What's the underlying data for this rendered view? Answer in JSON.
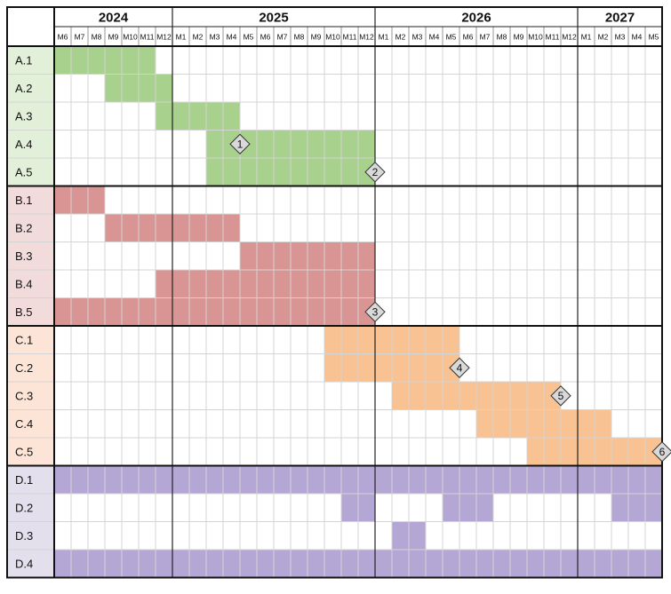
{
  "chart_data": {
    "type": "gantt",
    "years": [
      {
        "label": "2024",
        "start": 0,
        "months": 7
      },
      {
        "label": "2025",
        "start": 7,
        "months": 12
      },
      {
        "label": "2026",
        "start": 19,
        "months": 12
      },
      {
        "label": "2027",
        "start": 31,
        "months": 5
      }
    ],
    "months": [
      "M6",
      "M7",
      "M8",
      "M9",
      "M10",
      "M11",
      "M12",
      "M1",
      "M2",
      "M3",
      "M4",
      "M5",
      "M6",
      "M7",
      "M8",
      "M9",
      "M10",
      "M11",
      "M12",
      "M1",
      "M2",
      "M3",
      "M4",
      "M5",
      "M6",
      "M7",
      "M8",
      "M9",
      "M10",
      "M11",
      "M12",
      "M1",
      "M2",
      "M3",
      "M4",
      "M5"
    ],
    "colors": {
      "A": {
        "bar": "#a9d18e",
        "label_bg": "#e2efd9"
      },
      "B": {
        "bar": "#d99594",
        "label_bg": "#f2dcdb"
      },
      "C": {
        "bar": "#f8c293",
        "label_bg": "#fce4d6"
      },
      "D": {
        "bar": "#b4a7d6",
        "label_bg": "#e4dfec"
      }
    },
    "groups": [
      {
        "id": "A",
        "tasks": [
          {
            "label": "A.1",
            "spans": [
              [
                0,
                5
              ]
            ]
          },
          {
            "label": "A.2",
            "spans": [
              [
                3,
                6
              ]
            ]
          },
          {
            "label": "A.3",
            "spans": [
              [
                6,
                10
              ]
            ]
          },
          {
            "label": "A.4",
            "spans": [
              [
                9,
                18
              ]
            ]
          },
          {
            "label": "A.5",
            "spans": [
              [
                9,
                18
              ]
            ]
          }
        ]
      },
      {
        "id": "B",
        "tasks": [
          {
            "label": "B.1",
            "spans": [
              [
                0,
                2
              ]
            ]
          },
          {
            "label": "B.2",
            "spans": [
              [
                3,
                10
              ]
            ]
          },
          {
            "label": "B.3",
            "spans": [
              [
                11,
                18
              ]
            ]
          },
          {
            "label": "B.4",
            "spans": [
              [
                6,
                18
              ]
            ]
          },
          {
            "label": "B.5",
            "spans": [
              [
                0,
                18
              ]
            ]
          }
        ]
      },
      {
        "id": "C",
        "tasks": [
          {
            "label": "C.1",
            "spans": [
              [
                16,
                23
              ]
            ]
          },
          {
            "label": "C.2",
            "spans": [
              [
                16,
                23
              ]
            ]
          },
          {
            "label": "C.3",
            "spans": [
              [
                20,
                29
              ]
            ]
          },
          {
            "label": "C.4",
            "spans": [
              [
                25,
                32
              ]
            ]
          },
          {
            "label": "C.5",
            "spans": [
              [
                28,
                35
              ]
            ]
          }
        ]
      },
      {
        "id": "D",
        "tasks": [
          {
            "label": "D.1",
            "spans": [
              [
                0,
                35
              ]
            ]
          },
          {
            "label": "D.2",
            "spans": [
              [
                17,
                18
              ],
              [
                23,
                25
              ],
              [
                33,
                35
              ]
            ]
          },
          {
            "label": "D.3",
            "spans": [
              [
                20,
                21
              ]
            ]
          },
          {
            "label": "D.4",
            "spans": [
              [
                0,
                35
              ]
            ]
          }
        ]
      }
    ],
    "milestones": [
      {
        "label": "1",
        "task": "A.4",
        "month_boundary": 11
      },
      {
        "label": "2",
        "task": "A.5",
        "month_boundary": 19
      },
      {
        "label": "3",
        "task": "B.5",
        "month_boundary": 19
      },
      {
        "label": "4",
        "task": "C.2",
        "month_boundary": 24
      },
      {
        "label": "5",
        "task": "C.3",
        "month_boundary": 30
      },
      {
        "label": "6",
        "task": "C.5",
        "month_boundary": 36
      }
    ]
  }
}
